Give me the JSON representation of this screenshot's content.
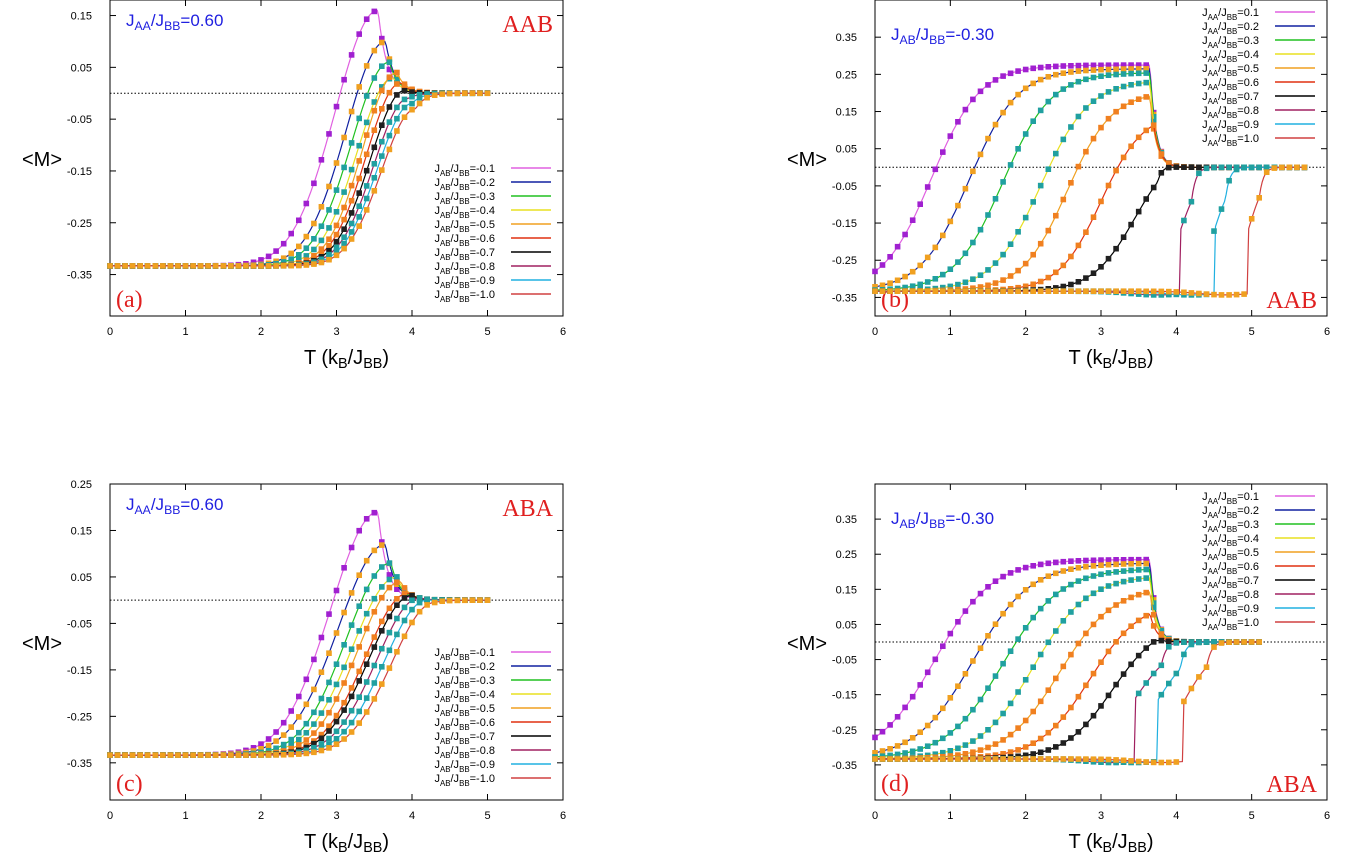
{
  "chart_data": [
    {
      "type": "line",
      "panel": "(a)",
      "label": "AAB",
      "parameter": {
        "base": "J",
        "sub1": "AA",
        "mid": "/J",
        "sub2": "BB",
        "tail": "=0.60"
      },
      "xlabel": {
        "base": "T (k",
        "sub1": "B",
        "mid": "/J",
        "sub2": "BB",
        "tail": ")"
      },
      "ylabel": "<M>",
      "xlim": [
        0,
        6
      ],
      "ylim": [
        -0.43,
        0.18
      ],
      "xticks": [
        "0",
        "1",
        "2",
        "3",
        "4",
        "5",
        "6"
      ],
      "yticks": [
        "0.15",
        "0.05",
        "-0.05",
        "-0.15",
        "-0.25",
        "-0.35"
      ],
      "legend_pos": "bottom-right",
      "legend_prefix": {
        "base": "J",
        "sub1": "AB",
        "mid": "/J",
        "sub2": "BB"
      },
      "series": [
        {
          "name": "-0.1",
          "color": "#e060e0",
          "marker": "#a020d0",
          "tc": 3.55,
          "peak": 0.16,
          "w": 0.5,
          "end": 5.05
        },
        {
          "name": "-0.2",
          "color": "#1020a0",
          "marker": "#f0a020",
          "tc": 3.65,
          "peak": 0.1,
          "w": 0.46,
          "end": 5.05
        },
        {
          "name": "-0.3",
          "color": "#20c020",
          "marker": "#20a0a0",
          "tc": 3.7,
          "peak": 0.06,
          "w": 0.44,
          "end": 5.05
        },
        {
          "name": "-0.4",
          "color": "#e8e020",
          "marker": "#20a0a0",
          "tc": 3.75,
          "peak": 0.03,
          "w": 0.42,
          "end": 5.05
        },
        {
          "name": "-0.5",
          "color": "#f0a020",
          "marker": "#f08020",
          "tc": 3.8,
          "peak": 0.04,
          "w": 0.4,
          "end": 5.05
        },
        {
          "name": "-0.6",
          "color": "#e03010",
          "marker": "#f08020",
          "tc": 3.85,
          "peak": 0.02,
          "w": 0.4,
          "end": 5.05
        },
        {
          "name": "-0.7",
          "color": "#000000",
          "marker": "#202020",
          "tc": 3.9,
          "peak": 0.005,
          "w": 0.4,
          "end": 5.05
        },
        {
          "name": "-0.8",
          "color": "#a02060",
          "marker": "#20a0a0",
          "tc": 3.95,
          "peak": -0.01,
          "w": 0.4,
          "end": 5.05
        },
        {
          "name": "-0.9",
          "color": "#20b0e0",
          "marker": "#20a0a0",
          "tc": 4.0,
          "peak": -0.02,
          "w": 0.4,
          "end": 5.05
        },
        {
          "name": "-1.0",
          "color": "#d04040",
          "marker": "#f0a020",
          "tc": 4.05,
          "peak": -0.03,
          "w": 0.4,
          "end": 5.05
        }
      ]
    },
    {
      "type": "line",
      "panel": "(b)",
      "label": "AAB",
      "parameter": {
        "base": "J",
        "sub1": "AB",
        "mid": "/J",
        "sub2": "BB",
        "tail": "=-0.30"
      },
      "xlabel": {
        "base": "T (k",
        "sub1": "B",
        "mid": "/J",
        "sub2": "BB",
        "tail": ")"
      },
      "ylabel": "<M>",
      "xlim": [
        0,
        6
      ],
      "ylim": [
        -0.4,
        0.45
      ],
      "xticks": [
        "0",
        "1",
        "2",
        "3",
        "4",
        "5",
        "6"
      ],
      "yticks": [
        "0.35",
        "0.25",
        "0.15",
        "0.05",
        "-0.05",
        "-0.15",
        "-0.25",
        "-0.35"
      ],
      "legend_pos": "top-right",
      "legend_prefix": {
        "base": "J",
        "sub1": "AA",
        "mid": "/J",
        "sub2": "BB"
      },
      "series": [
        {
          "name": "0.1",
          "color": "#e060e0",
          "marker": "#a020d0",
          "rise": 0.75,
          "width": 0.32,
          "peak": 0.275,
          "tc": 3.65,
          "end": 5.7
        },
        {
          "name": "0.2",
          "color": "#1020a0",
          "marker": "#f0a020",
          "rise": 1.25,
          "width": 0.32,
          "peak": 0.265,
          "tc": 3.65,
          "end": 5.7
        },
        {
          "name": "0.3",
          "color": "#20c020",
          "marker": "#20a0a0",
          "rise": 1.7,
          "width": 0.32,
          "peak": 0.255,
          "tc": 3.65,
          "end": 5.7
        },
        {
          "name": "0.4",
          "color": "#e8e020",
          "marker": "#20a0a0",
          "rise": 2.2,
          "width": 0.32,
          "peak": 0.235,
          "tc": 3.65,
          "end": 5.7
        },
        {
          "name": "0.5",
          "color": "#f0a020",
          "marker": "#f08020",
          "rise": 2.55,
          "width": 0.3,
          "peak": 0.205,
          "tc": 3.65,
          "end": 5.7
        },
        {
          "name": "0.6",
          "color": "#e03010",
          "marker": "#f08020",
          "rise": 3.0,
          "width": 0.28,
          "peak": 0.15,
          "tc": 3.7,
          "end": 5.7
        },
        {
          "name": "0.7",
          "color": "#000000",
          "marker": "#202020",
          "rise": 3.45,
          "width": 0.28,
          "peak": 0.06,
          "tc": 3.75,
          "end": 5.7
        },
        {
          "name": "0.8",
          "color": "#a02060",
          "marker": "#20a0a0",
          "rise": 4.05,
          "width": 0.14,
          "peak": -0.01,
          "tc": 4.2,
          "end": 5.7
        },
        {
          "name": "0.9",
          "color": "#20b0e0",
          "marker": "#20a0a0",
          "rise": 4.5,
          "width": 0.13,
          "peak": -0.01,
          "tc": 4.65,
          "end": 5.7
        },
        {
          "name": "1.0",
          "color": "#d04040",
          "marker": "#f0a020",
          "rise": 4.95,
          "width": 0.12,
          "peak": -0.01,
          "tc": 5.1,
          "end": 5.7
        }
      ]
    },
    {
      "type": "line",
      "panel": "(c)",
      "label": "ABA",
      "parameter": {
        "base": "J",
        "sub1": "AA",
        "mid": "/J",
        "sub2": "BB",
        "tail": "=0.60"
      },
      "xlabel": {
        "base": "T (k",
        "sub1": "B",
        "mid": "/J",
        "sub2": "BB",
        "tail": ")"
      },
      "ylabel": "<M>",
      "xlim": [
        0,
        6
      ],
      "ylim": [
        -0.43,
        0.25
      ],
      "xticks": [
        "0",
        "1",
        "2",
        "3",
        "4",
        "5",
        "6"
      ],
      "yticks": [
        "0.25",
        "0.15",
        "0.05",
        "-0.05",
        "-0.15",
        "-0.25",
        "-0.35"
      ],
      "legend_pos": "bottom-right",
      "legend_prefix": {
        "base": "J",
        "sub1": "AB",
        "mid": "/J",
        "sub2": "BB"
      },
      "series": [
        {
          "name": "-0.1",
          "color": "#e060e0",
          "marker": "#a020d0",
          "tc": 3.55,
          "peak": 0.19,
          "w": 0.55,
          "end": 5.05
        },
        {
          "name": "-0.2",
          "color": "#1020a0",
          "marker": "#f0a020",
          "tc": 3.65,
          "peak": 0.12,
          "w": 0.55,
          "end": 5.05
        },
        {
          "name": "-0.3",
          "color": "#20c020",
          "marker": "#20a0a0",
          "tc": 3.72,
          "peak": 0.08,
          "w": 0.52,
          "end": 5.05
        },
        {
          "name": "-0.4",
          "color": "#e8e020",
          "marker": "#20a0a0",
          "tc": 3.8,
          "peak": 0.05,
          "w": 0.52,
          "end": 5.05
        },
        {
          "name": "-0.5",
          "color": "#f0a020",
          "marker": "#f08020",
          "tc": 3.85,
          "peak": 0.04,
          "w": 0.5,
          "end": 5.05
        },
        {
          "name": "-0.6",
          "color": "#e03010",
          "marker": "#f08020",
          "tc": 3.95,
          "peak": 0.015,
          "w": 0.5,
          "end": 5.05
        },
        {
          "name": "-0.7",
          "color": "#000000",
          "marker": "#202020",
          "tc": 4.0,
          "peak": 0.01,
          "w": 0.5,
          "end": 5.05
        },
        {
          "name": "-0.8",
          "color": "#a02060",
          "marker": "#20a0a0",
          "tc": 4.1,
          "peak": 0.005,
          "w": 0.5,
          "end": 5.05
        },
        {
          "name": "-0.9",
          "color": "#20b0e0",
          "marker": "#20a0a0",
          "tc": 4.2,
          "peak": 0.0,
          "w": 0.5,
          "end": 5.05
        },
        {
          "name": "-1.0",
          "color": "#d04040",
          "marker": "#f0a020",
          "tc": 4.3,
          "peak": -0.005,
          "w": 0.5,
          "end": 5.05
        }
      ]
    },
    {
      "type": "line",
      "panel": "(d)",
      "label": "ABA",
      "parameter": {
        "base": "J",
        "sub1": "AB",
        "mid": "/J",
        "sub2": "BB",
        "tail": "=-0.30"
      },
      "xlabel": {
        "base": "T (k",
        "sub1": "B",
        "mid": "/J",
        "sub2": "BB",
        "tail": ")"
      },
      "ylabel": "<M>",
      "xlim": [
        0,
        6
      ],
      "ylim": [
        -0.45,
        0.45
      ],
      "xticks": [
        "0",
        "1",
        "2",
        "3",
        "4",
        "5",
        "6"
      ],
      "yticks": [
        "0.35",
        "0.25",
        "0.15",
        "0.05",
        "-0.05",
        "-0.15",
        "-0.25",
        "-0.35"
      ],
      "legend_pos": "top-right",
      "legend_prefix": {
        "base": "J",
        "sub1": "AA",
        "mid": "/J",
        "sub2": "BB"
      },
      "series": [
        {
          "name": "0.1",
          "color": "#e060e0",
          "marker": "#a020d0",
          "rise": 0.8,
          "width": 0.38,
          "peak": 0.235,
          "tc": 3.65,
          "end": 5.1
        },
        {
          "name": "0.2",
          "color": "#1020a0",
          "marker": "#f0a020",
          "rise": 1.3,
          "width": 0.38,
          "peak": 0.225,
          "tc": 3.65,
          "end": 5.1
        },
        {
          "name": "0.3",
          "color": "#20c020",
          "marker": "#20a0a0",
          "rise": 1.7,
          "width": 0.38,
          "peak": 0.21,
          "tc": 3.65,
          "end": 5.1
        },
        {
          "name": "0.4",
          "color": "#e8e020",
          "marker": "#20a0a0",
          "rise": 2.1,
          "width": 0.36,
          "peak": 0.19,
          "tc": 3.65,
          "end": 5.1
        },
        {
          "name": "0.5",
          "color": "#f0a020",
          "marker": "#f08020",
          "rise": 2.45,
          "width": 0.36,
          "peak": 0.16,
          "tc": 3.65,
          "end": 5.1
        },
        {
          "name": "0.6",
          "color": "#e03010",
          "marker": "#f08020",
          "rise": 2.85,
          "width": 0.34,
          "peak": 0.12,
          "tc": 3.65,
          "end": 5.1
        },
        {
          "name": "0.7",
          "color": "#000000",
          "marker": "#202020",
          "rise": 3.15,
          "width": 0.32,
          "peak": 0.06,
          "tc": 3.7,
          "end": 5.1
        },
        {
          "name": "0.8",
          "color": "#a02060",
          "marker": "#20a0a0",
          "rise": 3.45,
          "width": 0.28,
          "peak": 0.01,
          "tc": 3.8,
          "end": 5.1
        },
        {
          "name": "0.9",
          "color": "#20b0e0",
          "marker": "#20a0a0",
          "rise": 3.75,
          "width": 0.25,
          "peak": 0.0,
          "tc": 4.05,
          "end": 5.1
        },
        {
          "name": "1.0",
          "color": "#d04040",
          "marker": "#f0a020",
          "rise": 4.1,
          "width": 0.22,
          "peak": -0.005,
          "tc": 4.4,
          "end": 5.1
        }
      ]
    }
  ],
  "colors": {
    "param_text": "#2020e0",
    "tag_text": "#e02020",
    "zero_line": "#000000"
  }
}
